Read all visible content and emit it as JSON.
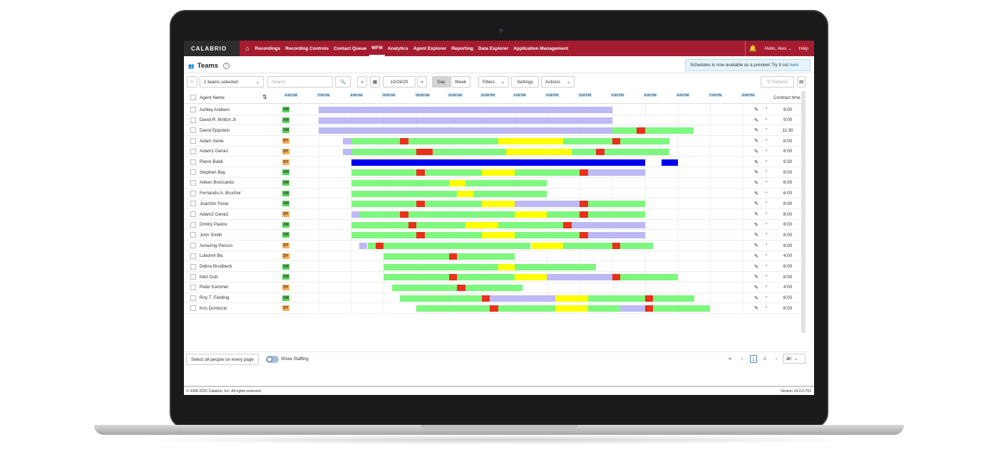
{
  "nav": {
    "logo": "CALABRIO",
    "items": [
      "Recordings",
      "Recording Controls",
      "Contact Queue",
      "WFM",
      "Analytics",
      "Agent Explorer",
      "Reporting",
      "Data Explorer",
      "Application Management"
    ],
    "active": "WFM",
    "user": "Hello, Alex",
    "help": "Help",
    "brand_color": "#a51c30"
  },
  "page": {
    "title": "Teams"
  },
  "banner": {
    "text": "Schedules is now available as a preview! Try it out",
    "link": "here"
  },
  "toolbar": {
    "team_select": "1 teams selected",
    "search_placeholder": "Search",
    "date": "10/19/20",
    "day": "Day",
    "week": "Week",
    "filters": "Filters",
    "settings": "Settings",
    "actions": "Actions",
    "refresh": "Refresh"
  },
  "grid": {
    "col_agent": "Agent Name",
    "col_contract": "Contract time",
    "time_ticks": [
      "6:00 AM",
      "7:00 AM",
      "8:00 AM",
      "9:00 AM",
      "10:00 AM",
      "11:00 AM",
      "12:00 PM",
      "1:00 PM",
      "2:00 PM",
      "3:00 PM",
      "4:00 PM",
      "5:00 PM",
      "6:00 PM",
      "7:00 PM",
      "8:00 PM"
    ],
    "legend_colors": {
      "work": "#7ef77e",
      "break": "#ffff00",
      "lunch": "#e8311a",
      "other": "#bdb9f5",
      "meeting": "#0000ee"
    },
    "agents": [
      {
        "name": "Ashley Andeen",
        "type": "AM",
        "contract": "9:00",
        "segments": [
          [
            7,
            16,
            "other"
          ]
        ]
      },
      {
        "name": "David R. Britton Jr.",
        "type": "AM",
        "contract": "9:00",
        "segments": [
          [
            7,
            16,
            "other"
          ]
        ]
      },
      {
        "name": "David Eppstein",
        "type": "AM",
        "contract": "11:30",
        "segments": [
          [
            7,
            16,
            "other"
          ],
          [
            16,
            16.75,
            "work"
          ],
          [
            16.75,
            17,
            "lunch"
          ],
          [
            17,
            18.5,
            "work"
          ]
        ]
      },
      {
        "name": "Adam Gene",
        "type": "DY",
        "contract": "8:00",
        "segments": [
          [
            7.75,
            8,
            "other"
          ],
          [
            8,
            9.5,
            "work"
          ],
          [
            9.5,
            9.75,
            "lunch"
          ],
          [
            9.75,
            12.5,
            "work"
          ],
          [
            12.5,
            14.5,
            "break"
          ],
          [
            14.5,
            16,
            "work"
          ],
          [
            16,
            16.25,
            "lunch"
          ],
          [
            16.25,
            17.75,
            "work"
          ]
        ]
      },
      {
        "name": "Adam1 Gene1",
        "type": "DY",
        "contract": "8:00",
        "segments": [
          [
            7.75,
            8,
            "other"
          ],
          [
            8,
            10,
            "work"
          ],
          [
            10,
            10.5,
            "lunch"
          ],
          [
            10.5,
            12.75,
            "work"
          ],
          [
            12.75,
            14.75,
            "break"
          ],
          [
            14.75,
            15.5,
            "work"
          ],
          [
            15.5,
            15.75,
            "lunch"
          ],
          [
            15.75,
            17.75,
            "work"
          ]
        ]
      },
      {
        "name": "Pierre Baldi",
        "type": "DY",
        "contract": "9:30",
        "segments": [
          [
            8,
            17,
            "meeting"
          ],
          [
            17.5,
            18,
            "meeting"
          ]
        ]
      },
      {
        "name": "Stephen Bay",
        "type": "AM",
        "contract": "8:00",
        "segments": [
          [
            8,
            10,
            "work"
          ],
          [
            10,
            10.25,
            "lunch"
          ],
          [
            10.25,
            12,
            "work"
          ],
          [
            12,
            13,
            "break"
          ],
          [
            13,
            15,
            "work"
          ],
          [
            15,
            15.25,
            "lunch"
          ],
          [
            15.25,
            17,
            "other"
          ]
        ]
      },
      {
        "name": "Aileen Broccardo",
        "type": "AM",
        "contract": "6:00",
        "segments": [
          [
            8,
            11,
            "work"
          ],
          [
            11,
            11.5,
            "break"
          ],
          [
            11.5,
            14,
            "work"
          ]
        ]
      },
      {
        "name": "Fernando A. Brucher",
        "type": "AM",
        "contract": "6:00",
        "segments": [
          [
            8,
            11.25,
            "work"
          ],
          [
            11.25,
            11.75,
            "break"
          ],
          [
            11.75,
            14,
            "work"
          ]
        ]
      },
      {
        "name": "Joachim Feise",
        "type": "AM",
        "contract": "8:00",
        "segments": [
          [
            8,
            10,
            "work"
          ],
          [
            10,
            10.25,
            "lunch"
          ],
          [
            10.25,
            12,
            "work"
          ],
          [
            12,
            13,
            "break"
          ],
          [
            13,
            15,
            "other"
          ],
          [
            15,
            15.25,
            "lunch"
          ],
          [
            15.25,
            17,
            "work"
          ]
        ]
      },
      {
        "name": "Adam2 Gene2",
        "type": "DY",
        "contract": "8:00",
        "segments": [
          [
            8,
            8.25,
            "other"
          ],
          [
            8.25,
            9.5,
            "work"
          ],
          [
            9.5,
            9.75,
            "lunch"
          ],
          [
            9.75,
            13,
            "work"
          ],
          [
            13,
            14,
            "break"
          ],
          [
            14,
            15,
            "work"
          ],
          [
            15,
            15.25,
            "lunch"
          ],
          [
            15.25,
            17,
            "work"
          ]
        ]
      },
      {
        "name": "Dmitry Pavlov",
        "type": "AM",
        "contract": "8:00",
        "segments": [
          [
            8,
            9.75,
            "work"
          ],
          [
            9.75,
            10,
            "lunch"
          ],
          [
            10,
            11.5,
            "work"
          ],
          [
            11.5,
            12.5,
            "break"
          ],
          [
            12.5,
            14.5,
            "work"
          ],
          [
            14.5,
            14.75,
            "lunch"
          ],
          [
            14.75,
            17,
            "other"
          ]
        ]
      },
      {
        "name": "John Smith",
        "type": "AM",
        "contract": "8:00",
        "segments": [
          [
            8,
            10,
            "work"
          ],
          [
            10,
            10.25,
            "lunch"
          ],
          [
            10.25,
            12,
            "work"
          ],
          [
            12,
            13,
            "break"
          ],
          [
            13,
            15,
            "work"
          ],
          [
            15,
            15.25,
            "lunch"
          ],
          [
            15.25,
            17,
            "other"
          ]
        ]
      },
      {
        "name": "Amazing Person",
        "type": "DY",
        "contract": "8:00",
        "segments": [
          [
            8.25,
            8.5,
            "other"
          ],
          [
            8.5,
            8.75,
            "work"
          ],
          [
            8.75,
            9,
            "lunch"
          ],
          [
            9,
            13.5,
            "work"
          ],
          [
            13.5,
            14.5,
            "break"
          ],
          [
            14.5,
            16,
            "work"
          ],
          [
            16,
            16.25,
            "lunch"
          ],
          [
            16.25,
            17.25,
            "work"
          ]
        ]
      },
      {
        "name": "Lubomir Bic",
        "type": "DY",
        "contract": "4:00",
        "segments": [
          [
            9,
            11,
            "work"
          ],
          [
            11,
            11.25,
            "lunch"
          ],
          [
            11.25,
            13,
            "work"
          ]
        ]
      },
      {
        "name": "Debra Brodbeck",
        "type": "AM",
        "contract": "6:00",
        "segments": [
          [
            9,
            12.5,
            "work"
          ],
          [
            12.5,
            13,
            "break"
          ],
          [
            13,
            15.5,
            "work"
          ]
        ]
      },
      {
        "name": "Nikil Dutt",
        "type": "AM",
        "contract": "8:00",
        "segments": [
          [
            9,
            11,
            "work"
          ],
          [
            11,
            11.25,
            "lunch"
          ],
          [
            11.25,
            13,
            "work"
          ],
          [
            13,
            14,
            "break"
          ],
          [
            14,
            16,
            "other"
          ],
          [
            16,
            16.25,
            "lunch"
          ],
          [
            16.25,
            18,
            "work"
          ]
        ]
      },
      {
        "name": "Peter Kammer",
        "type": "DY",
        "contract": "4:00",
        "segments": [
          [
            9.25,
            11.25,
            "work"
          ],
          [
            11.25,
            11.5,
            "lunch"
          ],
          [
            11.5,
            13.25,
            "work"
          ]
        ]
      },
      {
        "name": "Roy T. Fielding",
        "type": "AM",
        "contract": "8:00",
        "segments": [
          [
            9.5,
            12,
            "work"
          ],
          [
            12,
            12.25,
            "lunch"
          ],
          [
            12.25,
            14.25,
            "other"
          ],
          [
            14.25,
            15.25,
            "break"
          ],
          [
            15.25,
            17,
            "work"
          ],
          [
            17,
            17.25,
            "lunch"
          ],
          [
            17.25,
            18.5,
            "work"
          ]
        ]
      },
      {
        "name": "Kris Domiccio",
        "type": "DY",
        "contract": "8:00",
        "segments": [
          [
            10,
            12.25,
            "work"
          ],
          [
            12.25,
            12.5,
            "lunch"
          ],
          [
            12.5,
            14.25,
            "work"
          ],
          [
            14.25,
            15.25,
            "break"
          ],
          [
            15.25,
            16.25,
            "work"
          ],
          [
            16.25,
            17,
            "other"
          ],
          [
            17,
            17.25,
            "lunch"
          ],
          [
            17.25,
            19,
            "work"
          ]
        ]
      }
    ]
  },
  "bottom": {
    "select_all": "Select all people on every page",
    "show_staffing": "Show Staffing",
    "pages": [
      "1",
      "2"
    ],
    "current_page": "1",
    "page_size": "20"
  },
  "footer": {
    "copyright": "© 2008-2020 Calabrio, Inc. All rights reserved.",
    "version": "Version 19.0.0.702"
  }
}
